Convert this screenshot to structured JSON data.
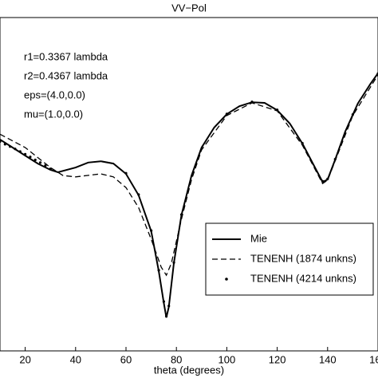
{
  "chart_data": {
    "type": "line",
    "title": "VV−Pol",
    "xlabel": "theta (degrees)",
    "annotations": [
      "r1=0.3367 lambda",
      "r2=0.4367 lambda",
      "eps=(4.0,0.0)",
      "mu=(1.0,0.0)"
    ],
    "xlim": [
      10,
      160
    ],
    "xticks": [
      20,
      40,
      60,
      80,
      100,
      120,
      140,
      160
    ],
    "ylim": [
      0,
      100
    ],
    "legend": "lower right",
    "series": [
      {
        "name": "Mie",
        "color": "#000000",
        "style": "solid",
        "x": [
          10,
          15,
          20,
          25,
          30,
          33,
          40,
          45,
          50,
          55,
          60,
          65,
          70,
          73,
          75,
          76,
          77,
          79,
          82,
          86,
          90,
          95,
          100,
          105,
          110,
          115,
          120,
          125,
          130,
          135,
          138,
          140,
          143,
          147,
          152,
          157,
          160
        ],
        "values": [
          63.4,
          61,
          58.6,
          56.2,
          54.3,
          53.6,
          55,
          56.5,
          56.9,
          56.2,
          53.1,
          46.7,
          35.9,
          23.9,
          14.4,
          10,
          13.2,
          26.3,
          40.7,
          52.6,
          61,
          67,
          71,
          73.4,
          74.6,
          74.4,
          72.2,
          68.2,
          62.2,
          55,
          50.7,
          51.4,
          57.4,
          65.8,
          74.2,
          80.1,
          83.3
        ]
      },
      {
        "name": "TENENH (1874 unkns)",
        "color": "#000000",
        "style": "dashed",
        "x": [
          10,
          20,
          30,
          35,
          40,
          50,
          55,
          60,
          65,
          70,
          74,
          76,
          78,
          82,
          86,
          90,
          100,
          110,
          120,
          130,
          138,
          140,
          150,
          160
        ],
        "values": [
          65,
          61,
          55,
          52.6,
          52.2,
          53.1,
          52.2,
          49,
          43,
          33.5,
          25.1,
          22.7,
          26.3,
          39.5,
          51.4,
          60.3,
          70.6,
          74.4,
          72,
          61.7,
          50.2,
          51.2,
          70.6,
          82.8
        ]
      },
      {
        "name": "TENENH (4214 unkns)",
        "color": "#000000",
        "style": "dots",
        "x": [
          10,
          12,
          14,
          16,
          18,
          20,
          22,
          24,
          26,
          28,
          30,
          60,
          65,
          70,
          73,
          75,
          76,
          77,
          79,
          82,
          100,
          110,
          120,
          130,
          138,
          140,
          143,
          150,
          160
        ],
        "values": [
          62.8,
          62,
          61.3,
          60.6,
          59.8,
          59,
          58.2,
          57.3,
          56.5,
          55.6,
          54.6,
          53.3,
          46.9,
          36.1,
          24.2,
          14.8,
          10.4,
          13.5,
          26.5,
          40.9,
          71.1,
          74.7,
          72.3,
          62.3,
          50.9,
          51.6,
          57.5,
          70.9,
          83.2
        ]
      }
    ]
  }
}
